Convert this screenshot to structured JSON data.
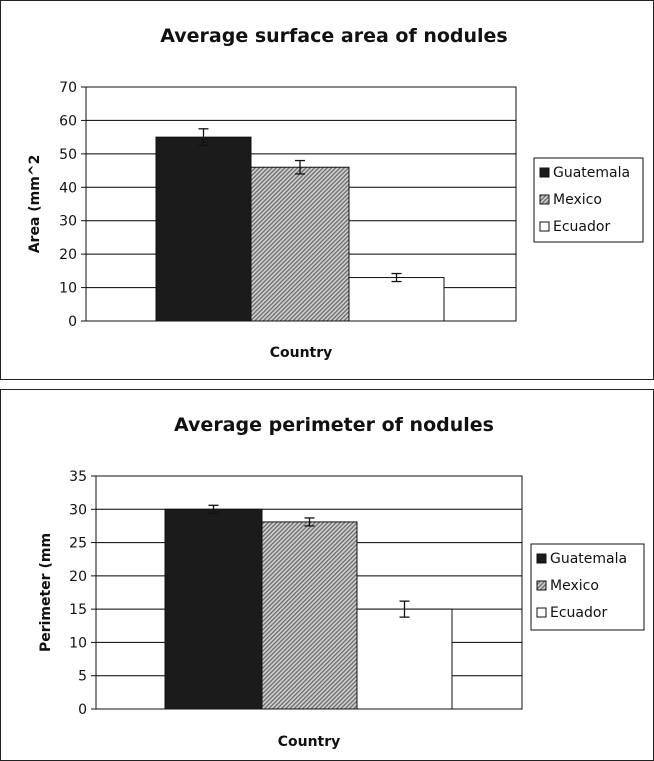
{
  "colors": {
    "Guatemala": "#1b1b1b",
    "Mexico": "#a8a8a8",
    "Ecuador": "#ffffff",
    "gridline": "#000000",
    "frame": "#111111"
  },
  "chart_data": [
    {
      "type": "bar",
      "title": "Average surface area of nodules",
      "xlabel": "Country",
      "ylabel": "Area (mm^2",
      "ylim": [
        0,
        70
      ],
      "yticks": [
        0,
        10,
        20,
        30,
        40,
        50,
        60,
        70
      ],
      "grid": true,
      "legend_position": "right",
      "series": [
        {
          "name": "Guatemala",
          "value": 55,
          "error": 2.5
        },
        {
          "name": "Mexico",
          "value": 46,
          "error": 2
        },
        {
          "name": "Ecuador",
          "value": 13,
          "error": 1.2
        }
      ]
    },
    {
      "type": "bar",
      "title": "Average perimeter of nodules",
      "xlabel": "Country",
      "ylabel": "Perimeter (mm",
      "ylim": [
        0,
        35
      ],
      "yticks": [
        0,
        5,
        10,
        15,
        20,
        25,
        30,
        35
      ],
      "grid": true,
      "legend_position": "right",
      "series": [
        {
          "name": "Guatemala",
          "value": 30,
          "error": 0.6
        },
        {
          "name": "Mexico",
          "value": 28.1,
          "error": 0.6
        },
        {
          "name": "Ecuador",
          "value": 15,
          "error": 1.2
        }
      ]
    }
  ]
}
